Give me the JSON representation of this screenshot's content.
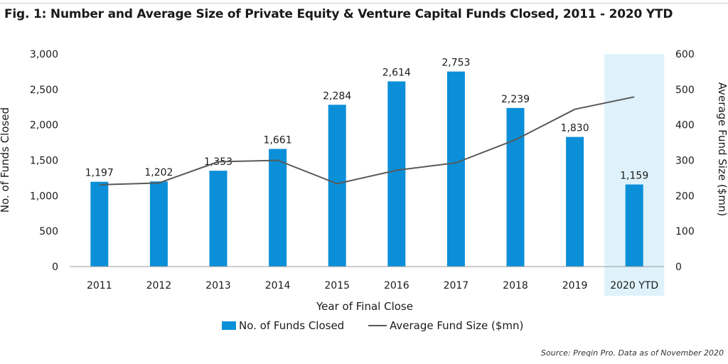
{
  "figure": {
    "title": "Fig. 1: Number and Average Size of Private Equity & Venture Capital Funds Closed, 2011 - 2020 YTD",
    "source": "Source: Preqin Pro. Data as of November 2020"
  },
  "legend": {
    "bar_label": "No. of Funds Closed",
    "line_label": "Average Fund Size ($mn)"
  },
  "colors": {
    "bar": "#0a8fd8",
    "line": "#595959",
    "highlight": "#dff2fb",
    "axis": "#9a9a9a"
  },
  "chart_data": {
    "type": "bar",
    "title": "Fig. 1: Number and Average Size of Private Equity & Venture Capital Funds Closed, 2011 - 2020 YTD",
    "categories": [
      "2011",
      "2012",
      "2013",
      "2014",
      "2015",
      "2016",
      "2017",
      "2018",
      "2019",
      "2020 YTD"
    ],
    "xlabel": "Year of Final Close",
    "ylabel": "No. of Funds Closed",
    "y2label": "Average Fund Size ($mn)",
    "ylim": [
      0,
      3000
    ],
    "y2lim": [
      0,
      600
    ],
    "yticks": [
      "0",
      "500",
      "1,000",
      "1,500",
      "2,000",
      "2,500",
      "3,000"
    ],
    "y2ticks": [
      "0",
      "100",
      "200",
      "300",
      "400",
      "500",
      "600"
    ],
    "series": [
      {
        "name": "No. of Funds Closed",
        "type": "bar",
        "axis": "left",
        "values": [
          1197,
          1202,
          1353,
          1661,
          2284,
          2614,
          2753,
          2239,
          1830,
          1159
        ],
        "labels": [
          "1,197",
          "1,202",
          "1,353",
          "1,661",
          "2,284",
          "2,614",
          "2,753",
          "2,239",
          "1,830",
          "1,159"
        ]
      },
      {
        "name": "Average Fund Size ($mn)",
        "type": "line",
        "axis": "right",
        "values": [
          231,
          236,
          296,
          300,
          234,
          272,
          293,
          358,
          444,
          479
        ]
      }
    ],
    "highlighted_category": "2020 YTD",
    "grid": false,
    "legend_position": "bottom"
  }
}
